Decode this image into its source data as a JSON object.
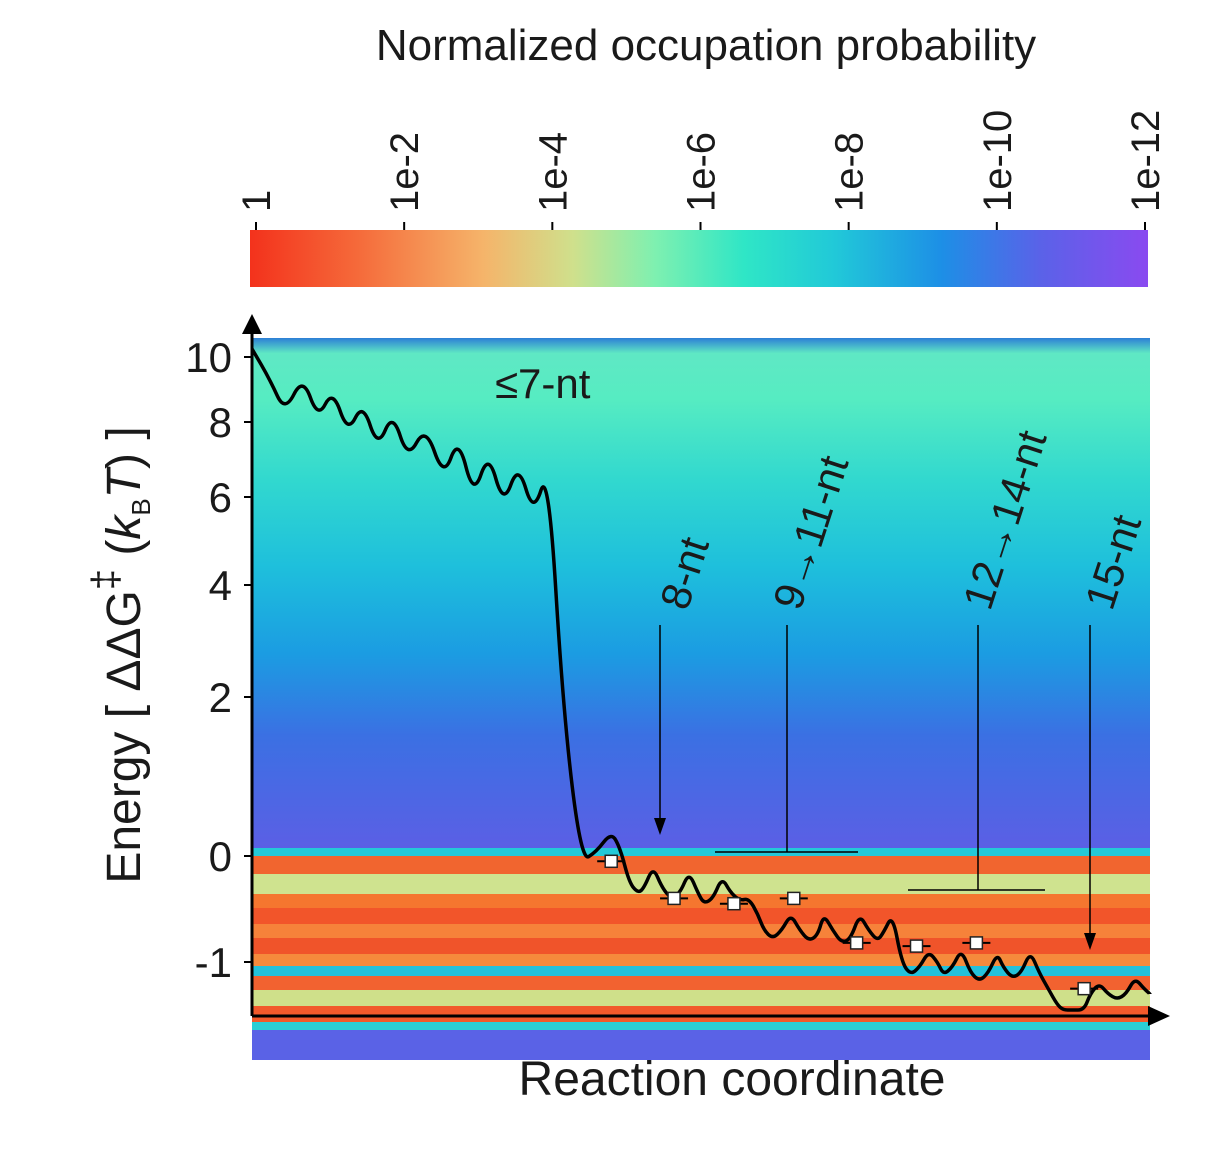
{
  "chart_data": {
    "type": "line",
    "title": "",
    "xlabel": "Reaction coordinate",
    "ylabel_parts": [
      "Energy [ ΔΔG",
      "‡",
      " (",
      "k",
      "B",
      "T",
      ") ]"
    ],
    "colorbar": {
      "label": "Normalized occupation probability",
      "ticks": [
        "1",
        "1e-2",
        "1e-4",
        "1e-6",
        "1e-8",
        "1e-10",
        "1e-12"
      ],
      "scale": "log",
      "range": [
        1,
        1e-12
      ]
    },
    "y_ticks": [
      "10",
      "8",
      "6",
      "4",
      "2",
      "0",
      "-1"
    ],
    "y_tick_values": [
      10,
      8,
      6,
      4,
      2,
      0,
      -1
    ],
    "ylim": [
      -1.45,
      10.7
    ],
    "xlim": [
      0,
      15
    ],
    "y_scale": "nonlinear",
    "series": [
      {
        "x": [
          0,
          0.3,
          0.55,
          0.85,
          1.1,
          1.35,
          1.6,
          1.85,
          2.1,
          2.35,
          2.6,
          2.9,
          3.2,
          3.45,
          3.7,
          3.95,
          4.2,
          4.45,
          4.7,
          4.95,
          5.2,
          5.5,
          5.75,
          6.0,
          6.15,
          6.3,
          6.45,
          6.55,
          6.7,
          6.85,
          7.0,
          7.15,
          7.3,
          7.45,
          7.55,
          7.7,
          7.85,
          8.0,
          8.15,
          8.3,
          8.45,
          8.55,
          8.7,
          8.85,
          9.0,
          9.15,
          9.3,
          9.45,
          9.55,
          9.7,
          9.85,
          10.0,
          10.15,
          10.3,
          10.45,
          10.55,
          10.7,
          10.85,
          11.0,
          11.15,
          11.3,
          11.45,
          11.55,
          11.7,
          11.85,
          12.0,
          12.15,
          12.3,
          12.45,
          12.55,
          12.7,
          12.85,
          13.0,
          13.15,
          13.3,
          13.45,
          13.55,
          13.7,
          13.9,
          14.0,
          14.15,
          14.3,
          14.45,
          14.6,
          14.75,
          14.9,
          15.0
        ],
        "y": [
          10.3,
          9.3,
          8.3,
          9.4,
          8.1,
          9.0,
          7.7,
          8.6,
          7.3,
          8.3,
          7.0,
          7.9,
          6.5,
          7.6,
          6.0,
          7.2,
          5.8,
          6.9,
          5.6,
          6.8,
          1.8,
          -0.05,
          0.05,
          0.3,
          0.1,
          -0.25,
          -0.35,
          -0.3,
          -0.1,
          -0.3,
          -0.4,
          -0.35,
          -0.15,
          -0.35,
          -0.45,
          -0.4,
          -0.2,
          -0.35,
          -0.42,
          -0.4,
          -0.55,
          -0.7,
          -0.78,
          -0.7,
          -0.55,
          -0.7,
          -0.8,
          -0.75,
          -0.55,
          -0.7,
          -0.82,
          -0.78,
          -0.55,
          -0.7,
          -0.8,
          -0.72,
          -0.55,
          -1.0,
          -1.12,
          -1.05,
          -0.9,
          -1.0,
          -1.12,
          -1.05,
          -0.88,
          -1.1,
          -1.18,
          -1.1,
          -0.92,
          -1.05,
          -1.15,
          -1.1,
          -0.9,
          -1.1,
          -1.25,
          -1.4,
          -1.55,
          -1.55,
          -1.5,
          -1.3,
          -1.2,
          -1.3,
          -1.35,
          -1.3,
          -1.15,
          -1.25,
          -1.3
        ]
      }
    ],
    "minima": [
      {
        "x": 6.0,
        "y": -0.05
      },
      {
        "x": 7.05,
        "y": -0.4
      },
      {
        "x": 8.05,
        "y": -0.45
      },
      {
        "x": 9.05,
        "y": -0.4
      },
      {
        "x": 10.1,
        "y": -0.82
      },
      {
        "x": 11.1,
        "y": -0.85
      },
      {
        "x": 12.1,
        "y": -0.82
      },
      {
        "x": 13.9,
        "y": -1.25
      }
    ],
    "annotations": [
      {
        "text": "≤7-nt"
      },
      {
        "text": "8-nt"
      },
      {
        "text": "9→11-nt"
      },
      {
        "text": "12→14-nt"
      },
      {
        "text": "15-nt"
      }
    ]
  }
}
